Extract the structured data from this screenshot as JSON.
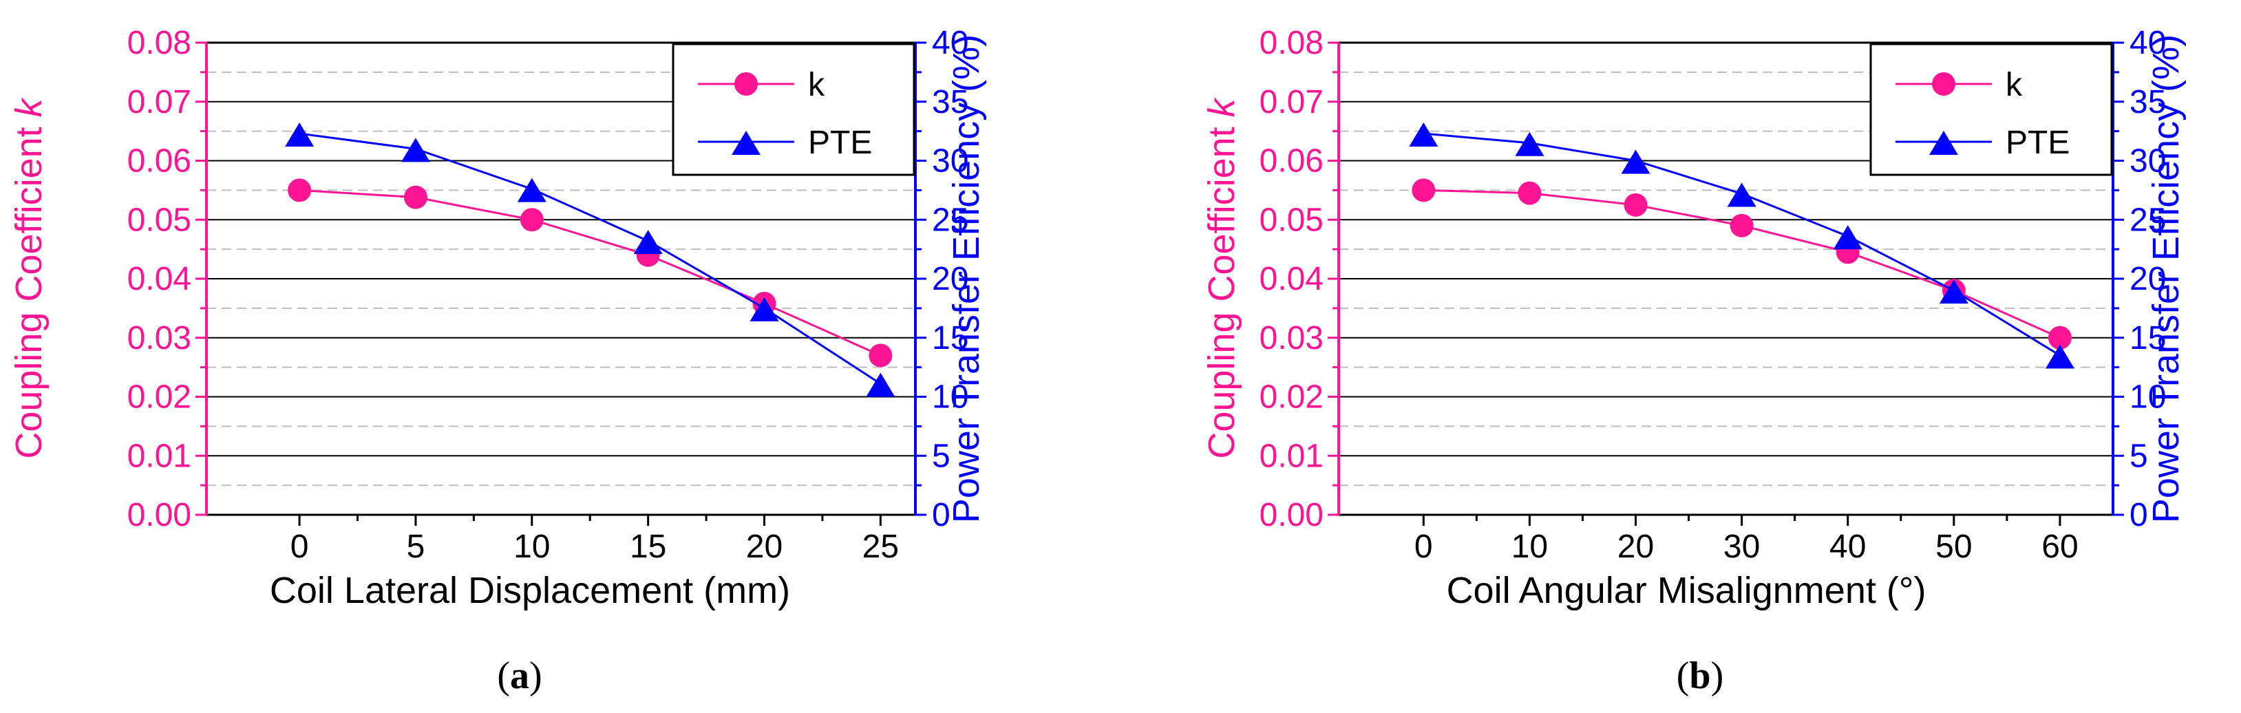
{
  "colors": {
    "k": "#ff1493",
    "pte": "#0000ff",
    "grid_major": "#000000",
    "grid_minor": "#bdbdbd",
    "frame": "#000000"
  },
  "chart_data": [
    {
      "type": "line",
      "panel_label": "(a)",
      "panel_letter": "a",
      "xlabel": "Coil Lateral Displacement (mm)",
      "ylabel_left": "Coupling Coefficient",
      "ylabel_left_symbol": "k",
      "ylabel_right": "Power Transfer Efficiency (%)",
      "x": [
        0,
        5,
        10,
        15,
        20,
        25
      ],
      "xlim": [
        -4,
        26.5
      ],
      "x_ticks": [
        "0",
        "5",
        "10",
        "15",
        "20",
        "25"
      ],
      "ylim_left": [
        0,
        0.08
      ],
      "y_ticks_left": [
        "0.00",
        "0.01",
        "0.02",
        "0.03",
        "0.04",
        "0.05",
        "0.06",
        "0.07",
        "0.08"
      ],
      "ylim_right": [
        0,
        40
      ],
      "y_ticks_right": [
        "0",
        "5",
        "10",
        "15",
        "20",
        "25",
        "30",
        "35",
        "40"
      ],
      "legend": [
        "k",
        "PTE"
      ],
      "legend_position": "top-right",
      "series": [
        {
          "name": "k",
          "axis": "left",
          "marker": "circle",
          "values": [
            0.055,
            0.0538,
            0.05,
            0.044,
            0.0358,
            0.027
          ]
        },
        {
          "name": "PTE",
          "axis": "right",
          "marker": "triangle",
          "values": [
            32.3,
            31.0,
            27.6,
            23.2,
            17.5,
            11.1
          ]
        }
      ]
    },
    {
      "type": "line",
      "panel_label": "(b)",
      "panel_letter": "b",
      "xlabel": "Coil Angular Misalignment (°)",
      "ylabel_left": "Coupling Coefficient",
      "ylabel_left_symbol": "k",
      "ylabel_right": "Power Transfer Efficiency (%)",
      "x": [
        0,
        10,
        20,
        30,
        40,
        50,
        60
      ],
      "xlim": [
        -8,
        65
      ],
      "x_ticks": [
        "0",
        "10",
        "20",
        "30",
        "40",
        "50",
        "60"
      ],
      "ylim_left": [
        0,
        0.08
      ],
      "y_ticks_left": [
        "0.00",
        "0.01",
        "0.02",
        "0.03",
        "0.04",
        "0.05",
        "0.06",
        "0.07",
        "0.08"
      ],
      "ylim_right": [
        0,
        40
      ],
      "y_ticks_right": [
        "0",
        "5",
        "10",
        "15",
        "20",
        "25",
        "30",
        "35",
        "40"
      ],
      "legend": [
        "k",
        "PTE"
      ],
      "legend_position": "top-right",
      "series": [
        {
          "name": "k",
          "axis": "left",
          "marker": "circle",
          "values": [
            0.055,
            0.0545,
            0.0525,
            0.049,
            0.0445,
            0.038,
            0.03
          ]
        },
        {
          "name": "PTE",
          "axis": "right",
          "marker": "triangle",
          "values": [
            32.3,
            31.5,
            30.0,
            27.2,
            23.6,
            19.0,
            13.5
          ]
        }
      ]
    }
  ]
}
